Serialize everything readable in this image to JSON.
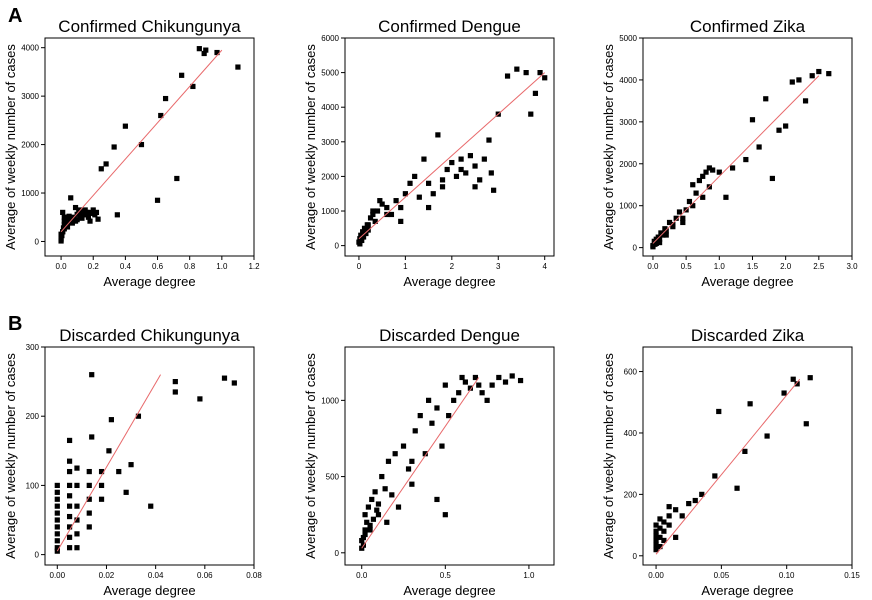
{
  "panel_labels": {
    "a": "A",
    "b": "B"
  },
  "chart_data": [
    {
      "type": "scatter",
      "title": "Confirmed Chikungunya",
      "xlabel": "Average degree",
      "ylabel": "Average of weekly number of cases",
      "xlim": [
        -0.1,
        1.2
      ],
      "ylim": [
        -300,
        4200
      ],
      "xticks": [
        0.0,
        0.2,
        0.4,
        0.6,
        0.8,
        1.0,
        1.2
      ],
      "xtick_labels": [
        "0.0",
        "0.2",
        "0.4",
        "0.6",
        "0.8",
        "1.0",
        "1.2"
      ],
      "yticks": [
        0,
        1000,
        2000,
        3000,
        4000
      ],
      "ytick_labels": [
        "0",
        "1000",
        "2000",
        "3000",
        "4000"
      ],
      "fit": {
        "x": [
          0.0,
          1.0
        ],
        "y": [
          200,
          3950
        ]
      },
      "series": [
        {
          "name": "observations",
          "x": [
            0.0,
            0.005,
            0.01,
            0.015,
            0.02,
            0.02,
            0.03,
            0.03,
            0.04,
            0.04,
            0.05,
            0.05,
            0.06,
            0.07,
            0.08,
            0.09,
            0.1,
            0.1,
            0.11,
            0.12,
            0.13,
            0.14,
            0.15,
            0.16,
            0.17,
            0.18,
            0.19,
            0.2,
            0.21,
            0.22,
            0.23,
            0.25,
            0.28,
            0.01,
            0.02,
            0.03,
            0.06,
            0.09,
            0.12,
            0.15,
            0.18,
            0.33,
            0.35,
            0.4,
            0.5,
            0.6,
            0.62,
            0.65,
            0.72,
            0.75,
            0.82,
            0.86,
            0.89,
            0.9,
            0.97,
            1.1,
            0.0,
            0.0,
            0.01,
            0.02
          ],
          "y": [
            50,
            120,
            200,
            280,
            350,
            420,
            380,
            460,
            300,
            500,
            400,
            520,
            450,
            380,
            500,
            420,
            560,
            450,
            600,
            520,
            480,
            560,
            650,
            600,
            500,
            420,
            580,
            650,
            550,
            600,
            460,
            1500,
            1600,
            600,
            500,
            420,
            900,
            700,
            650,
            550,
            600,
            1950,
            550,
            2380,
            2000,
            850,
            2600,
            2950,
            1300,
            3430,
            3200,
            3980,
            3880,
            3950,
            3900,
            3600,
            10,
            150,
            200,
            260
          ]
        }
      ]
    },
    {
      "type": "scatter",
      "title": "Confirmed Dengue",
      "xlabel": "Average degree",
      "ylabel": "Average of weekly number of cases",
      "xlim": [
        -0.3,
        4.2
      ],
      "ylim": [
        -300,
        6000
      ],
      "xticks": [
        0,
        1,
        2,
        3,
        4
      ],
      "xtick_labels": [
        "0",
        "1",
        "2",
        "3",
        "4"
      ],
      "yticks": [
        0,
        1000,
        2000,
        3000,
        4000,
        5000,
        6000
      ],
      "ytick_labels": [
        "0",
        "1000",
        "2000",
        "3000",
        "4000",
        "5000",
        "6000"
      ],
      "fit": {
        "x": [
          0.0,
          4.0
        ],
        "y": [
          200,
          5000
        ]
      },
      "series": [
        {
          "name": "observations",
          "x": [
            0.0,
            0.02,
            0.04,
            0.06,
            0.08,
            0.1,
            0.12,
            0.15,
            0.18,
            0.2,
            0.25,
            0.3,
            0.35,
            0.4,
            0.5,
            0.6,
            0.7,
            0.8,
            0.9,
            1.0,
            1.1,
            1.2,
            1.3,
            1.4,
            1.5,
            1.6,
            1.7,
            1.8,
            1.9,
            2.0,
            2.1,
            2.2,
            2.3,
            2.4,
            2.5,
            2.6,
            2.7,
            2.8,
            2.9,
            3.0,
            3.2,
            3.4,
            3.6,
            3.7,
            3.8,
            3.9,
            4.0,
            2.85,
            0.05,
            0.1,
            0.2,
            0.3,
            0.45,
            0.6,
            0.9,
            1.5,
            2.2,
            2.5,
            1.8,
            0.02,
            0.08
          ],
          "y": [
            100,
            200,
            300,
            150,
            400,
            250,
            500,
            350,
            600,
            450,
            800,
            900,
            700,
            1000,
            1200,
            1100,
            900,
            1300,
            1100,
            1500,
            1800,
            2000,
            1400,
            2500,
            1800,
            1500,
            3200,
            1700,
            2200,
            2400,
            2000,
            2500,
            2100,
            2600,
            2300,
            1900,
            2500,
            3050,
            1600,
            3800,
            4900,
            5100,
            5000,
            3800,
            4400,
            5000,
            4850,
            2100,
            150,
            350,
            600,
            1000,
            1300,
            900,
            700,
            1100,
            2200,
            1700,
            1900,
            50,
            250
          ]
        }
      ]
    },
    {
      "type": "scatter",
      "title": "Confirmed Zika",
      "xlabel": "Average degree",
      "ylabel": "Average of weekly number of cases",
      "xlim": [
        -0.15,
        3.0
      ],
      "ylim": [
        -200,
        5000
      ],
      "xticks": [
        0.0,
        0.5,
        1.0,
        1.5,
        2.0,
        2.5,
        3.0
      ],
      "xtick_labels": [
        "0.0",
        "0.5",
        "1.0",
        "1.5",
        "2.0",
        "2.5",
        "3.0"
      ],
      "yticks": [
        0,
        1000,
        2000,
        3000,
        4000,
        5000
      ],
      "ytick_labels": [
        "0",
        "1000",
        "2000",
        "3000",
        "4000",
        "5000"
      ],
      "fit": {
        "x": [
          0.0,
          2.5
        ],
        "y": [
          100,
          4100
        ]
      },
      "series": [
        {
          "name": "observations",
          "x": [
            0.0,
            0.02,
            0.05,
            0.08,
            0.1,
            0.12,
            0.15,
            0.18,
            0.2,
            0.25,
            0.3,
            0.35,
            0.4,
            0.45,
            0.5,
            0.55,
            0.6,
            0.65,
            0.7,
            0.75,
            0.8,
            0.85,
            0.9,
            1.0,
            1.1,
            1.2,
            1.4,
            1.5,
            1.6,
            1.7,
            1.8,
            1.9,
            2.0,
            2.1,
            2.2,
            2.3,
            2.4,
            2.5,
            2.65,
            0.05,
            0.1,
            0.2,
            0.3,
            0.45,
            0.6,
            0.75,
            0.85,
            0.0,
            0.03
          ],
          "y": [
            50,
            150,
            100,
            250,
            200,
            350,
            300,
            450,
            400,
            600,
            500,
            700,
            850,
            600,
            900,
            1100,
            1500,
            1300,
            1600,
            1700,
            1800,
            1900,
            1850,
            1800,
            1200,
            1900,
            2100,
            3050,
            2400,
            3550,
            1650,
            2800,
            2900,
            3950,
            4000,
            3500,
            4100,
            4200,
            4150,
            200,
            120,
            300,
            550,
            700,
            1000,
            1200,
            1450,
            20,
            80
          ]
        }
      ]
    },
    {
      "type": "scatter",
      "title": "Discarded Chikungunya",
      "xlabel": "Average degree",
      "ylabel": "Average of weekly number of cases",
      "xlim": [
        -0.005,
        0.08
      ],
      "ylim": [
        -15,
        300
      ],
      "xticks": [
        0.0,
        0.02,
        0.04,
        0.06,
        0.08
      ],
      "xtick_labels": [
        "0.00",
        "0.02",
        "0.04",
        "0.06",
        "0.08"
      ],
      "yticks": [
        0,
        100,
        200,
        300
      ],
      "ytick_labels": [
        "0",
        "100",
        "200",
        "300"
      ],
      "fit": {
        "x": [
          0.0,
          0.042
        ],
        "y": [
          5,
          260
        ]
      },
      "series": [
        {
          "name": "observations",
          "x": [
            0.0,
            0.0,
            0.0,
            0.0,
            0.0,
            0.0,
            0.0,
            0.0,
            0.0,
            0.0,
            0.0,
            0.005,
            0.005,
            0.005,
            0.005,
            0.005,
            0.005,
            0.005,
            0.005,
            0.005,
            0.005,
            0.008,
            0.008,
            0.008,
            0.008,
            0.008,
            0.008,
            0.013,
            0.013,
            0.013,
            0.013,
            0.013,
            0.014,
            0.014,
            0.018,
            0.018,
            0.018,
            0.021,
            0.022,
            0.025,
            0.028,
            0.03,
            0.033,
            0.038,
            0.048,
            0.048,
            0.058,
            0.068,
            0.072
          ],
          "y": [
            10,
            20,
            30,
            40,
            50,
            60,
            70,
            80,
            90,
            100,
            5,
            10,
            25,
            40,
            55,
            70,
            85,
            100,
            120,
            135,
            165,
            10,
            30,
            50,
            70,
            100,
            125,
            40,
            60,
            80,
            100,
            120,
            260,
            170,
            80,
            100,
            120,
            150,
            195,
            120,
            90,
            130,
            200,
            70,
            250,
            235,
            225,
            255,
            248
          ]
        }
      ]
    },
    {
      "type": "scatter",
      "title": "Discarded Dengue",
      "xlabel": "Average degree",
      "ylabel": "Average of weekly number of cases",
      "xlim": [
        -0.1,
        1.15
      ],
      "ylim": [
        -80,
        1350
      ],
      "xticks": [
        0.0,
        0.5,
        1.0
      ],
      "xtick_labels": [
        "0.0",
        "0.5",
        "1.0"
      ],
      "yticks": [
        0,
        500,
        1000
      ],
      "ytick_labels": [
        "0",
        "500",
        "1000"
      ],
      "fit": {
        "x": [
          0.0,
          0.7
        ],
        "y": [
          30,
          1150
        ]
      },
      "series": [
        {
          "name": "observations",
          "x": [
            0.0,
            0.01,
            0.02,
            0.02,
            0.03,
            0.04,
            0.05,
            0.06,
            0.07,
            0.08,
            0.09,
            0.1,
            0.12,
            0.14,
            0.16,
            0.18,
            0.2,
            0.22,
            0.25,
            0.28,
            0.3,
            0.32,
            0.35,
            0.38,
            0.4,
            0.42,
            0.45,
            0.48,
            0.5,
            0.52,
            0.55,
            0.58,
            0.6,
            0.62,
            0.65,
            0.68,
            0.7,
            0.72,
            0.75,
            0.78,
            0.82,
            0.86,
            0.9,
            0.95,
            0.0,
            0.02,
            0.05,
            0.1,
            0.15,
            0.3,
            0.5,
            0.45,
            0.01
          ],
          "y": [
            30,
            100,
            150,
            250,
            200,
            300,
            180,
            350,
            220,
            400,
            280,
            320,
            500,
            420,
            600,
            380,
            650,
            300,
            700,
            550,
            600,
            800,
            900,
            650,
            1000,
            850,
            950,
            700,
            1100,
            900,
            1000,
            1050,
            1150,
            1120,
            1080,
            1150,
            1100,
            1050,
            1000,
            1100,
            1150,
            1120,
            1160,
            1130,
            80,
            120,
            150,
            250,
            200,
            450,
            250,
            350,
            50
          ]
        }
      ]
    },
    {
      "type": "scatter",
      "title": "Discarded Zika",
      "xlabel": "Average degree",
      "ylabel": "Average of weekly number of cases",
      "xlim": [
        -0.01,
        0.15
      ],
      "ylim": [
        -30,
        680
      ],
      "xticks": [
        0.0,
        0.05,
        0.1,
        0.15
      ],
      "xtick_labels": [
        "0.00",
        "0.05",
        "0.10",
        "0.15"
      ],
      "yticks": [
        0,
        200,
        400,
        600
      ],
      "ytick_labels": [
        "0",
        "200",
        "400",
        "600"
      ],
      "fit": {
        "x": [
          0.0,
          0.11
        ],
        "y": [
          5,
          575
        ]
      },
      "series": [
        {
          "name": "observations",
          "x": [
            0.0,
            0.0,
            0.0,
            0.0,
            0.0,
            0.0,
            0.003,
            0.003,
            0.003,
            0.003,
            0.006,
            0.006,
            0.006,
            0.01,
            0.01,
            0.01,
            0.015,
            0.015,
            0.02,
            0.025,
            0.03,
            0.035,
            0.045,
            0.048,
            0.062,
            0.068,
            0.072,
            0.085,
            0.098,
            0.105,
            0.108,
            0.115,
            0.118
          ],
          "y": [
            20,
            35,
            50,
            65,
            80,
            100,
            30,
            60,
            90,
            120,
            50,
            80,
            110,
            100,
            130,
            160,
            60,
            150,
            130,
            170,
            180,
            200,
            260,
            470,
            220,
            340,
            495,
            390,
            530,
            575,
            560,
            430,
            580
          ]
        }
      ]
    }
  ]
}
